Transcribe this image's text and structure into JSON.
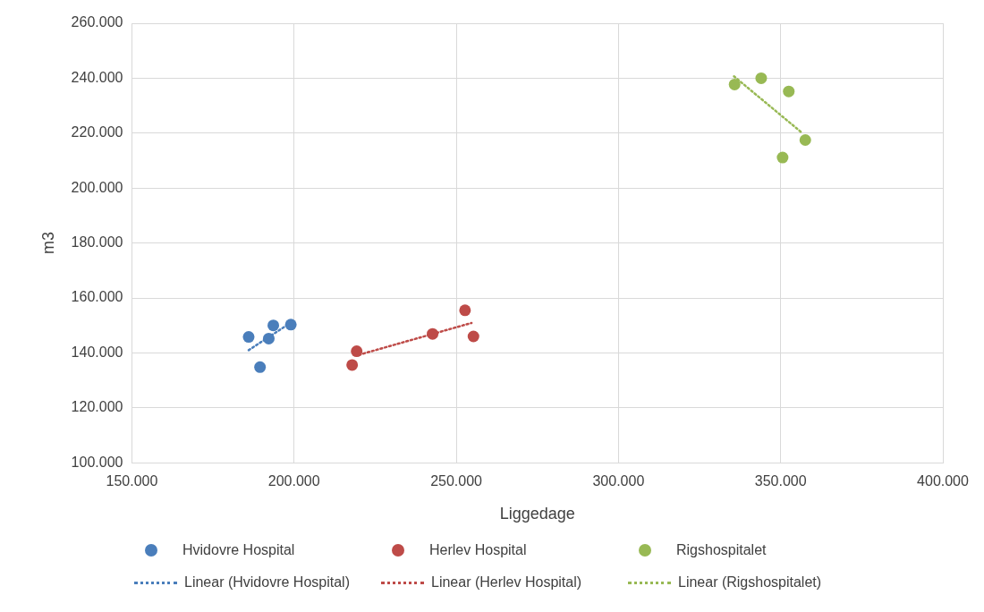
{
  "chart_data": {
    "type": "scatter",
    "xlabel": "Liggedage",
    "ylabel": "m3",
    "xlim": [
      150000,
      400000
    ],
    "xticks": [
      {
        "value": 150000,
        "label": "150.000"
      },
      {
        "value": 200000,
        "label": "200.000"
      },
      {
        "value": 250000,
        "label": "250.000"
      },
      {
        "value": 300000,
        "label": "300.000"
      },
      {
        "value": 350000,
        "label": "350.000"
      },
      {
        "value": 400000,
        "label": "400.000"
      }
    ],
    "ylim": [
      100000,
      260000
    ],
    "yticks": [
      {
        "value": 100000,
        "label": "100.000"
      },
      {
        "value": 120000,
        "label": "120.000"
      },
      {
        "value": 140000,
        "label": "140.000"
      },
      {
        "value": 160000,
        "label": "160.000"
      },
      {
        "value": 180000,
        "label": "180.000"
      },
      {
        "value": 200000,
        "label": "200.000"
      },
      {
        "value": 220000,
        "label": "220.000"
      },
      {
        "value": 240000,
        "label": "240.000"
      },
      {
        "value": 260000,
        "label": "260.000"
      }
    ],
    "grid": true,
    "legend": "bottom",
    "series": [
      {
        "name": "Hvidovre Hospital",
        "marker": "circle",
        "color": "#4a7ebb",
        "x": [
          186000,
          189500,
          192200,
          193600,
          199000
        ],
        "values": [
          145800,
          134800,
          145200,
          150000,
          150300
        ]
      },
      {
        "name": "Herlev Hospital",
        "marker": "circle",
        "color": "#be4b48",
        "x": [
          219300,
          217900,
          242700,
          252700,
          255300
        ],
        "values": [
          140600,
          135600,
          146900,
          155500,
          146000
        ]
      },
      {
        "name": "Rigshospitalet",
        "marker": "circle",
        "color": "#98b954",
        "x": [
          335800,
          344000,
          352500,
          357600,
          350600
        ],
        "values": [
          237700,
          240000,
          235200,
          217500,
          211100
        ]
      },
      {
        "name": "Linear (Hvidovre Hospital)",
        "type": "line",
        "line_style": "dotted",
        "color": "#4a7ebb",
        "x": [
          186000,
          199000
        ],
        "values": [
          141000,
          151000
        ]
      },
      {
        "name": "Linear (Herlev Hospital)",
        "type": "line",
        "line_style": "dotted",
        "color": "#be4b48",
        "x": [
          220000,
          254700
        ],
        "values": [
          139300,
          150900
        ]
      },
      {
        "name": "Linear (Rigshospitalet)",
        "type": "line",
        "line_style": "dotted",
        "color": "#98b954",
        "x": [
          335600,
          356300
        ],
        "values": [
          240700,
          220400
        ]
      }
    ]
  }
}
